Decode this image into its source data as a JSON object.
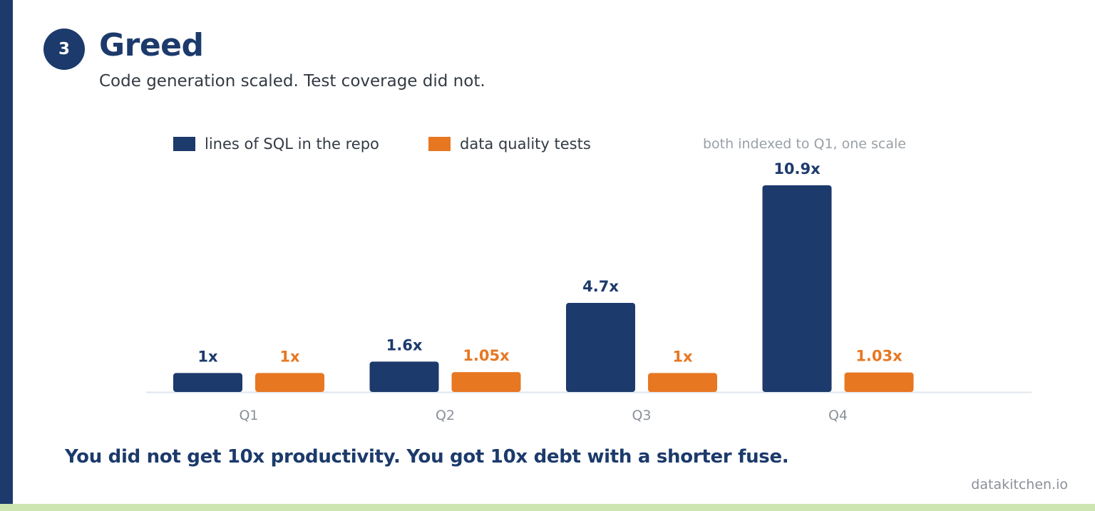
{
  "header": {
    "badge": "3",
    "title": "Greed",
    "subtitle": "Code generation scaled. Test coverage did not."
  },
  "legend": {
    "items": [
      {
        "label": "lines of SQL in the repo",
        "color": "#1c3a6b"
      },
      {
        "label": "data quality tests",
        "color": "#e87722"
      }
    ],
    "note": "both indexed to Q1, one scale"
  },
  "chart_data": {
    "type": "bar",
    "categories": [
      "Q1",
      "Q2",
      "Q3",
      "Q4"
    ],
    "series": [
      {
        "name": "lines of SQL in the repo",
        "color": "#1c3a6b",
        "values": [
          1,
          1.6,
          4.7,
          10.9
        ],
        "labels": [
          "1x",
          "1.6x",
          "4.7x",
          "10.9x"
        ]
      },
      {
        "name": "data quality tests",
        "color": "#e87722",
        "values": [
          1,
          1.05,
          1,
          1.03
        ],
        "labels": [
          "1x",
          "1.05x",
          "1x",
          "1.03x"
        ]
      }
    ],
    "title": "",
    "xlabel": "",
    "ylabel": "",
    "ylim": [
      0,
      11
    ],
    "grid": false,
    "legend_position": "top-left"
  },
  "footer": {
    "message": "You did not get 10x productivity. You got 10x debt with a shorter fuse.",
    "site": "datakitchen.io"
  }
}
